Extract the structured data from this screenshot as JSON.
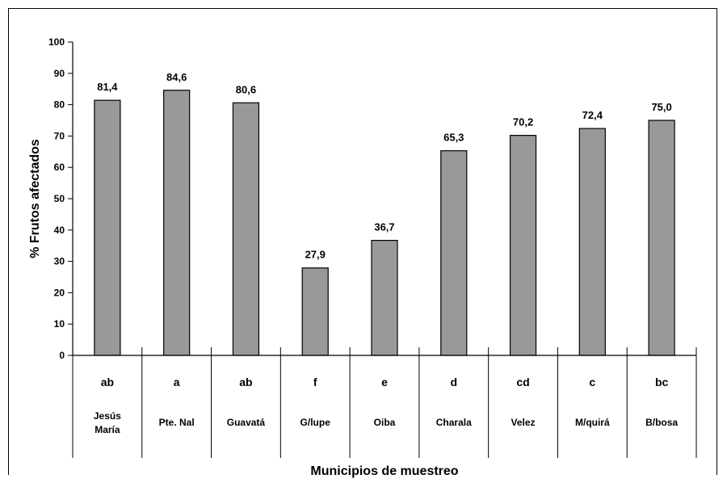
{
  "chart_data": {
    "type": "bar",
    "title": "",
    "xlabel": "Municipios de muestreo",
    "ylabel": "% Frutos afectados",
    "ylim": [
      0,
      100
    ],
    "yticks": [
      0,
      10,
      20,
      30,
      40,
      50,
      60,
      70,
      80,
      90,
      100
    ],
    "grid": false,
    "colors": {
      "bar": "#999999",
      "bar_stroke": "#000000"
    },
    "categories": [
      [
        "Jesús",
        "María"
      ],
      [
        "Pte. Nal"
      ],
      [
        "Guavatá"
      ],
      [
        "G/lupe"
      ],
      [
        "Oiba"
      ],
      [
        "Charala"
      ],
      [
        "Velez"
      ],
      [
        "M/quirá"
      ],
      [
        "B/bosa"
      ]
    ],
    "values": [
      81.4,
      84.6,
      80.6,
      27.9,
      36.7,
      65.3,
      70.2,
      72.4,
      75.0
    ],
    "data_labels": [
      "81,4",
      "84,6",
      "80,6",
      "27,9",
      "36,7",
      "65,3",
      "70,2",
      "72,4",
      "75,0"
    ],
    "groups": [
      "ab",
      "a",
      "ab",
      "f",
      "e",
      "d",
      "cd",
      "c",
      "bc"
    ]
  }
}
